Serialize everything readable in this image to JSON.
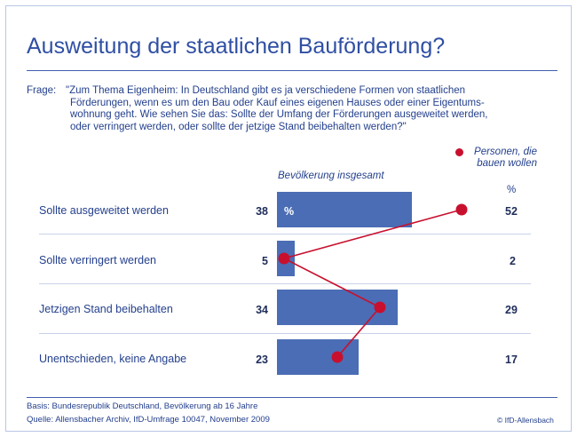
{
  "title": "Ausweitung der staatlichen Bauförderung?",
  "question": {
    "label": "Frage:",
    "lines": [
      "\"Zum Thema Eigenheim: In Deutschland gibt es ja verschiedene Formen von staatlichen",
      "Förderungen, wenn es um den Bau oder Kauf eines eigenen Hauses oder einer Eigentums-",
      "wohnung geht. Wie sehen Sie das: Sollte der Umfang der Förderungen ausgeweitet werden,",
      "oder verringert werden, oder sollte der jetzige Stand beibehalten werden?\""
    ]
  },
  "footer": {
    "basis": "Basis: Bundesrepublik Deutschland, Bevölkerung ab 16 Jahre",
    "source": "Quelle: Allensbacher Archiv, IfD-Umfrage 10047, November 2009",
    "copyright": "© IfD-Allensbach"
  },
  "chart_data": {
    "type": "bar",
    "orientation": "horizontal",
    "unit": "%",
    "categories": [
      "Sollte ausgeweitet werden",
      "Sollte verringert werden",
      "Jetzigen Stand beibehalten",
      "Unentschieden, keine Angabe"
    ],
    "series": [
      {
        "name": "Bevölkerung insgesamt",
        "values": [
          38,
          5,
          34,
          23
        ],
        "color": "#4b6db5",
        "mark": "bar"
      },
      {
        "name": "Personen, die bauen wollen",
        "values": [
          52,
          2,
          29,
          17
        ],
        "color": "#c8102e",
        "mark": "line-dot"
      }
    ],
    "series2_unit_label": "%",
    "bar_unit_label": "%",
    "xlim": [
      0,
      60
    ]
  }
}
